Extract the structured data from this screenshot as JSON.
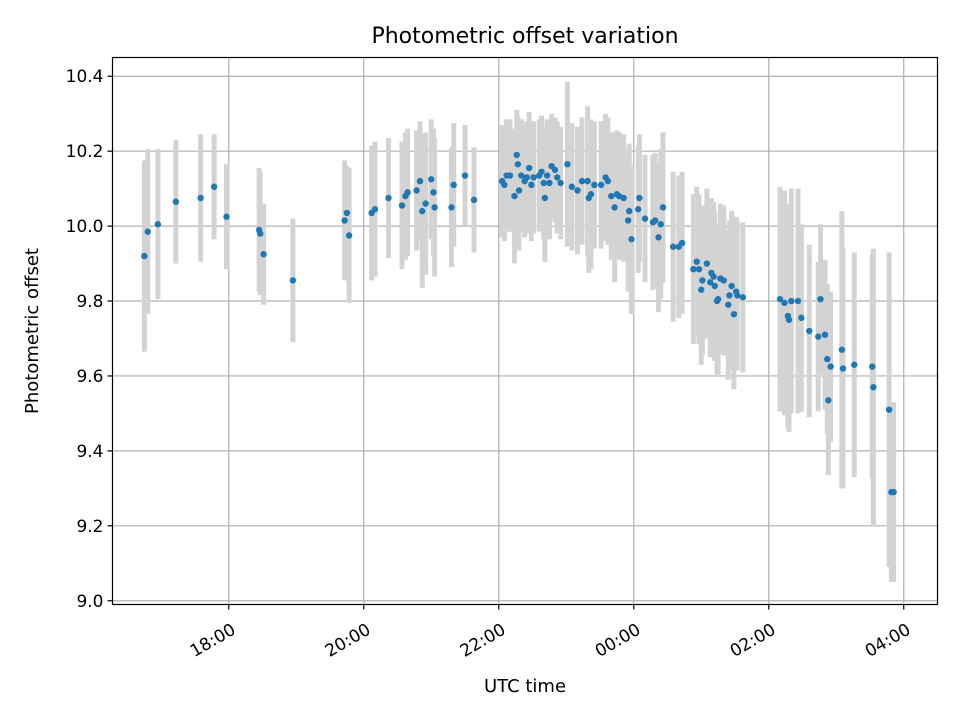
{
  "chart_data": {
    "type": "scatter",
    "title": "Photometric offset variation",
    "xlabel": "UTC time",
    "ylabel": "Photometric offset",
    "ylim": [
      8.99,
      10.45
    ],
    "xlim": [
      "16:30",
      "04:25"
    ],
    "x_unit": "UTC time of night (times after 00:00 fall on the following day)",
    "grid": true,
    "legend": "none",
    "y_ticks": [
      "9.0",
      "9.2",
      "9.4",
      "9.6",
      "9.8",
      "10.0",
      "10.2",
      "10.4"
    ],
    "x_ticks": [
      {
        "label": "18:00",
        "t": "18:00"
      },
      {
        "label": "20:00",
        "t": "20:00"
      },
      {
        "label": "22:00",
        "t": "22:00"
      },
      {
        "label": "00:00",
        "t": "00:00"
      },
      {
        "label": "02:00",
        "t": "02:00"
      },
      {
        "label": "04:00",
        "t": "04:00"
      }
    ],
    "colors": {
      "points": "#1f77b4",
      "error_bars": "#d3d3d3",
      "grid": "#b0b0b0"
    },
    "series": [
      {
        "points": [
          {
            "t": "16:45",
            "y": 9.92,
            "err": 0.255
          },
          {
            "t": "16:48",
            "y": 9.985,
            "err": 0.22
          },
          {
            "t": "16:57",
            "y": 10.005,
            "err": 0.2
          },
          {
            "t": "17:13",
            "y": 10.065,
            "err": 0.165
          },
          {
            "t": "17:35",
            "y": 10.075,
            "err": 0.17
          },
          {
            "t": "17:47",
            "y": 10.105,
            "err": 0.14
          },
          {
            "t": "17:58",
            "y": 10.025,
            "err": 0.14
          },
          {
            "t": "18:27",
            "y": 9.99,
            "err": 0.165
          },
          {
            "t": "18:28",
            "y": 9.98,
            "err": 0.165
          },
          {
            "t": "18:31",
            "y": 9.925,
            "err": 0.135
          },
          {
            "t": "18:57",
            "y": 9.855,
            "err": 0.165
          },
          {
            "t": "19:43",
            "y": 10.015,
            "err": 0.16
          },
          {
            "t": "19:45",
            "y": 10.035,
            "err": 0.125
          },
          {
            "t": "19:47",
            "y": 9.975,
            "err": 0.18
          },
          {
            "t": "20:07",
            "y": 10.035,
            "err": 0.18
          },
          {
            "t": "20:10",
            "y": 10.045,
            "err": 0.18
          },
          {
            "t": "20:22",
            "y": 10.075,
            "err": 0.16
          },
          {
            "t": "20:34",
            "y": 10.055,
            "err": 0.17
          },
          {
            "t": "20:37",
            "y": 10.08,
            "err": 0.17
          },
          {
            "t": "20:39",
            "y": 10.09,
            "err": 0.17
          },
          {
            "t": "20:47",
            "y": 10.095,
            "err": 0.16
          },
          {
            "t": "20:50",
            "y": 10.12,
            "err": 0.16
          },
          {
            "t": "20:52",
            "y": 10.04,
            "err": 0.205
          },
          {
            "t": "20:55",
            "y": 10.06,
            "err": 0.19
          },
          {
            "t": "21:00",
            "y": 10.125,
            "err": 0.16
          },
          {
            "t": "21:02",
            "y": 10.09,
            "err": 0.17
          },
          {
            "t": "21:03",
            "y": 10.05,
            "err": 0.185
          },
          {
            "t": "21:18",
            "y": 10.05,
            "err": 0.16
          },
          {
            "t": "21:20",
            "y": 10.11,
            "err": 0.165
          },
          {
            "t": "21:30",
            "y": 10.135,
            "err": 0.135
          },
          {
            "t": "21:38",
            "y": 10.07,
            "err": 0.14
          },
          {
            "t": "22:03",
            "y": 10.12,
            "err": 0.15
          },
          {
            "t": "22:05",
            "y": 10.11,
            "err": 0.15
          },
          {
            "t": "22:07",
            "y": 10.135,
            "err": 0.15
          },
          {
            "t": "22:10",
            "y": 10.135,
            "err": 0.15
          },
          {
            "t": "22:14",
            "y": 10.08,
            "err": 0.18
          },
          {
            "t": "22:16",
            "y": 10.19,
            "err": 0.12
          },
          {
            "t": "22:17",
            "y": 10.165,
            "err": 0.13
          },
          {
            "t": "22:18",
            "y": 10.095,
            "err": 0.16
          },
          {
            "t": "22:20",
            "y": 10.135,
            "err": 0.15
          },
          {
            "t": "22:23",
            "y": 10.12,
            "err": 0.15
          },
          {
            "t": "22:25",
            "y": 10.13,
            "err": 0.15
          },
          {
            "t": "22:27",
            "y": 10.155,
            "err": 0.15
          },
          {
            "t": "22:29",
            "y": 10.11,
            "err": 0.15
          },
          {
            "t": "22:31",
            "y": 10.13,
            "err": 0.15
          },
          {
            "t": "22:36",
            "y": 10.135,
            "err": 0.15
          },
          {
            "t": "22:38",
            "y": 10.145,
            "err": 0.15
          },
          {
            "t": "22:40",
            "y": 10.115,
            "err": 0.15
          },
          {
            "t": "22:41",
            "y": 10.075,
            "err": 0.17
          },
          {
            "t": "22:43",
            "y": 10.135,
            "err": 0.15
          },
          {
            "t": "22:45",
            "y": 10.115,
            "err": 0.15
          },
          {
            "t": "22:47",
            "y": 10.16,
            "err": 0.14
          },
          {
            "t": "22:50",
            "y": 10.15,
            "err": 0.14
          },
          {
            "t": "22:52",
            "y": 10.13,
            "err": 0.15
          },
          {
            "t": "22:55",
            "y": 10.115,
            "err": 0.15
          },
          {
            "t": "23:01",
            "y": 10.165,
            "err": 0.22
          },
          {
            "t": "23:05",
            "y": 10.105,
            "err": 0.17
          },
          {
            "t": "23:10",
            "y": 10.095,
            "err": 0.17
          },
          {
            "t": "23:14",
            "y": 10.12,
            "err": 0.17
          },
          {
            "t": "23:19",
            "y": 10.12,
            "err": 0.2
          },
          {
            "t": "23:20",
            "y": 10.075,
            "err": 0.2
          },
          {
            "t": "23:22",
            "y": 10.085,
            "err": 0.2
          },
          {
            "t": "23:25",
            "y": 10.11,
            "err": 0.17
          },
          {
            "t": "23:31",
            "y": 10.11,
            "err": 0.17
          },
          {
            "t": "23:35",
            "y": 10.13,
            "err": 0.17
          },
          {
            "t": "23:37",
            "y": 10.12,
            "err": 0.17
          },
          {
            "t": "23:40",
            "y": 10.08,
            "err": 0.17
          },
          {
            "t": "23:43",
            "y": 10.05,
            "err": 0.2
          },
          {
            "t": "23:45",
            "y": 10.085,
            "err": 0.17
          },
          {
            "t": "23:47",
            "y": 10.08,
            "err": 0.17
          },
          {
            "t": "23:51",
            "y": 10.075,
            "err": 0.17
          },
          {
            "t": "23:55",
            "y": 10.015,
            "err": 0.19
          },
          {
            "t": "23:56",
            "y": 10.04,
            "err": 0.18
          },
          {
            "t": "23:58",
            "y": 9.965,
            "err": 0.2
          },
          {
            "t": "00:04",
            "y": 10.045,
            "err": 0.17
          },
          {
            "t": "00:05",
            "y": 10.075,
            "err": 0.17
          },
          {
            "t": "00:10",
            "y": 10.02,
            "err": 0.17
          },
          {
            "t": "00:17",
            "y": 10.01,
            "err": 0.18
          },
          {
            "t": "00:19",
            "y": 10.015,
            "err": 0.18
          },
          {
            "t": "00:22",
            "y": 9.97,
            "err": 0.2
          },
          {
            "t": "00:24",
            "y": 10.005,
            "err": 0.2
          },
          {
            "t": "00:26",
            "y": 10.05,
            "err": 0.2
          },
          {
            "t": "00:35",
            "y": 9.945,
            "err": 0.2
          },
          {
            "t": "00:40",
            "y": 9.945,
            "err": 0.19
          },
          {
            "t": "00:43",
            "y": 9.955,
            "err": 0.19
          },
          {
            "t": "00:53",
            "y": 9.885,
            "err": 0.2
          },
          {
            "t": "00:56",
            "y": 9.905,
            "err": 0.2
          },
          {
            "t": "00:58",
            "y": 9.885,
            "err": 0.2
          },
          {
            "t": "01:00",
            "y": 9.83,
            "err": 0.2
          },
          {
            "t": "01:01",
            "y": 9.855,
            "err": 0.2
          },
          {
            "t": "01:05",
            "y": 9.9,
            "err": 0.2
          },
          {
            "t": "01:08",
            "y": 9.85,
            "err": 0.2
          },
          {
            "t": "01:09",
            "y": 9.875,
            "err": 0.2
          },
          {
            "t": "01:11",
            "y": 9.865,
            "err": 0.2
          },
          {
            "t": "01:12",
            "y": 9.84,
            "err": 0.2
          },
          {
            "t": "01:14",
            "y": 9.8,
            "err": 0.2
          },
          {
            "t": "01:15",
            "y": 9.805,
            "err": 0.2
          },
          {
            "t": "01:17",
            "y": 9.86,
            "err": 0.2
          },
          {
            "t": "01:20",
            "y": 9.855,
            "err": 0.2
          },
          {
            "t": "01:24",
            "y": 9.79,
            "err": 0.2
          },
          {
            "t": "01:25",
            "y": 9.815,
            "err": 0.2
          },
          {
            "t": "01:27",
            "y": 9.84,
            "err": 0.2
          },
          {
            "t": "01:29",
            "y": 9.765,
            "err": 0.2
          },
          {
            "t": "01:31",
            "y": 9.825,
            "err": 0.2
          },
          {
            "t": "01:32",
            "y": 9.815,
            "err": 0.2
          },
          {
            "t": "01:37",
            "y": 9.81,
            "err": 0.2
          },
          {
            "t": "02:10",
            "y": 9.805,
            "err": 0.3
          },
          {
            "t": "02:14",
            "y": 9.795,
            "err": 0.3
          },
          {
            "t": "02:17",
            "y": 9.76,
            "err": 0.3
          },
          {
            "t": "02:18",
            "y": 9.75,
            "err": 0.3
          },
          {
            "t": "02:20",
            "y": 9.8,
            "err": 0.3
          },
          {
            "t": "02:26",
            "y": 9.8,
            "err": 0.3
          },
          {
            "t": "02:29",
            "y": 9.755,
            "err": 0.25
          },
          {
            "t": "02:36",
            "y": 9.72,
            "err": 0.23
          },
          {
            "t": "02:44",
            "y": 9.705,
            "err": 0.2
          },
          {
            "t": "02:46",
            "y": 9.805,
            "err": 0.2
          },
          {
            "t": "02:50",
            "y": 9.71,
            "err": 0.2
          },
          {
            "t": "02:52",
            "y": 9.645,
            "err": 0.2
          },
          {
            "t": "02:53",
            "y": 9.535,
            "err": 0.2
          },
          {
            "t": "02:55",
            "y": 9.625,
            "err": 0.2
          },
          {
            "t": "03:05",
            "y": 9.67,
            "err": 0.37
          },
          {
            "t": "03:06",
            "y": 9.62,
            "err": 0.32
          },
          {
            "t": "03:16",
            "y": 9.63,
            "err": 0.3
          },
          {
            "t": "03:32",
            "y": 9.625,
            "err": 0.3
          },
          {
            "t": "03:33",
            "y": 9.57,
            "err": 0.37
          },
          {
            "t": "03:47",
            "y": 9.51,
            "err": 0.42
          },
          {
            "t": "03:49",
            "y": 9.29,
            "err": 0.24
          },
          {
            "t": "03:51",
            "y": 9.29,
            "err": 0.24
          }
        ]
      }
    ]
  }
}
